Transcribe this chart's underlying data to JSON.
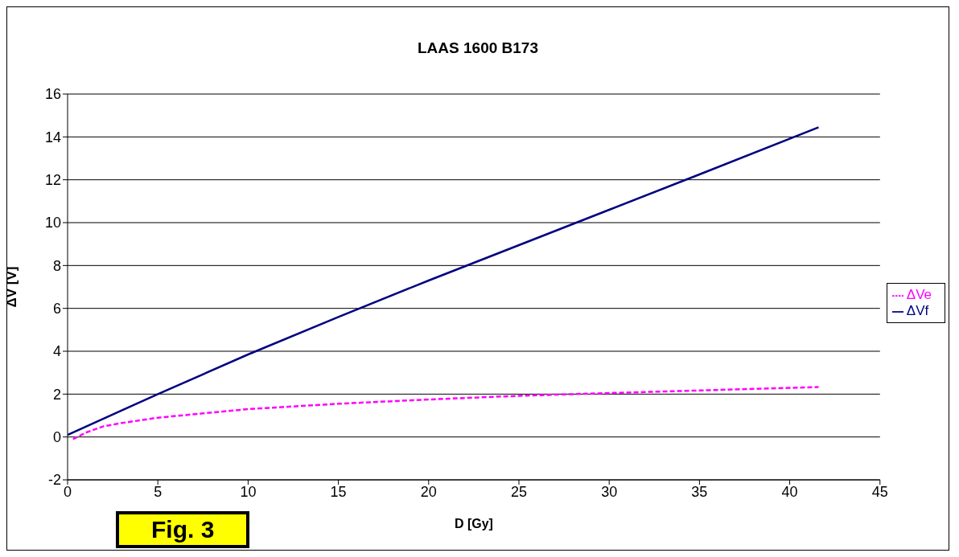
{
  "chart_data": {
    "type": "line",
    "title": "LAAS 1600 B173",
    "xlabel": "D [Gy]",
    "ylabel": "ΔV [V]",
    "annotations": [
      "Fig. 3"
    ],
    "xlim": [
      0,
      45
    ],
    "xticks": [
      0,
      5,
      10,
      15,
      20,
      25,
      30,
      35,
      40,
      45
    ],
    "ylim": [
      -2,
      16
    ],
    "yticks": [
      -2,
      0,
      2,
      4,
      6,
      8,
      10,
      12,
      14,
      16
    ],
    "grid": "y",
    "legend": "right",
    "marker": "none",
    "series": [
      {
        "name": "ΔVf",
        "color": "#000080",
        "line_style": "solid",
        "x": [
          0,
          5,
          10,
          15,
          20,
          25,
          30,
          35,
          41.6
        ],
        "values": [
          0.1,
          2.0,
          3.85,
          5.6,
          7.3,
          8.95,
          10.6,
          12.25,
          14.45
        ]
      },
      {
        "name": "ΔVe",
        "color": "#ff00ff",
        "line_style": "dashed",
        "x": [
          0.3,
          1,
          2,
          3,
          5,
          7.5,
          10,
          15,
          20,
          25,
          30,
          35,
          41.6
        ],
        "values": [
          -0.1,
          0.2,
          0.5,
          0.65,
          0.9,
          1.1,
          1.3,
          1.55,
          1.75,
          1.92,
          2.05,
          2.17,
          2.33
        ]
      }
    ]
  }
}
